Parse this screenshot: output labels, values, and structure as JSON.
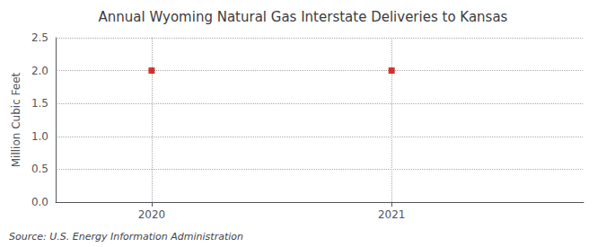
{
  "chart_data": {
    "type": "scatter",
    "title": "Annual Wyoming Natural Gas Interstate Deliveries to Kansas",
    "ylabel": "Million Cubic Feet",
    "source": "Source: U.S. Energy Information Administration",
    "x": [
      2020,
      2021
    ],
    "values": [
      2.0,
      2.0
    ],
    "color": "#cc0000",
    "marker": "square",
    "xlim": [
      2019.6,
      2021.8
    ],
    "xticks": [
      2020,
      2021
    ],
    "ylim": [
      0.0,
      2.5
    ],
    "yticks": [
      {
        "value": 0.0,
        "label": "0.0"
      },
      0.5,
      {
        "value": 1.0,
        "label": "1.0"
      },
      1.5,
      {
        "value": 2.0,
        "label": "2.0"
      },
      2.5
    ],
    "grid": true
  }
}
